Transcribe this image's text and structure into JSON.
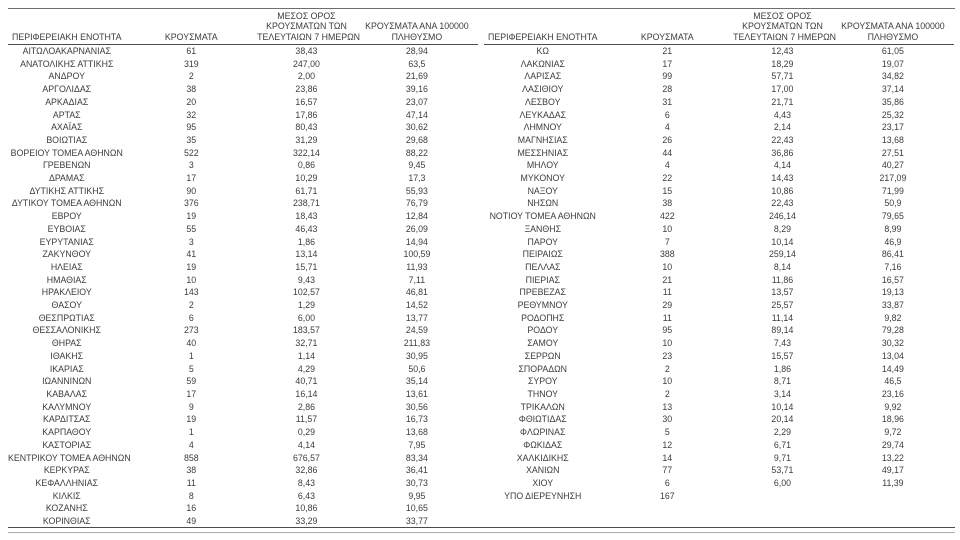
{
  "colors": {
    "background": "#ffffff",
    "text": "#3c3c3c",
    "rule_top": "#6f6f6f",
    "rule_header": "#4c4c4c",
    "rule_bottom_dark": "#4c4c4c",
    "rule_bottom_light": "#ababab"
  },
  "chart_data": {
    "type": "table",
    "columns": [
      "ΠΕΡΙΦΕΡΕΙΑΚΗ ΕΝΟΤΗΤΑ",
      "ΚΡΟΥΣΜΑΤΑ",
      "ΜΕΣΟΣ ΟΡΟΣ ΚΡΟΥΣΜΑΤΩΝ ΤΩΝ ΤΕΛΕΥΤΑΙΩΝ 7 ΗΜΕΡΩΝ",
      "ΚΡΟΥΣΜΑΤΑ ΑΝΑ 100000 ΠΛΗΘΥΣΜΟ"
    ],
    "column_header_lines": [
      [
        "ΠΕΡΙΦΕΡΕΙΑΚΗ ΕΝΟΤΗΤΑ"
      ],
      [
        "ΚΡΟΥΣΜΑΤΑ"
      ],
      [
        "ΜΕΣΟΣ ΟΡΟΣ",
        "ΚΡΟΥΣΜΑΤΩΝ ΤΩΝ",
        "ΤΕΛΕΥΤΑΙΩΝ 7 ΗΜΕΡΩΝ"
      ],
      [
        "ΚΡΟΥΣΜΑΤΑ ΑΝΑ 100000",
        "ΠΛΗΘΥΣΜΟ"
      ]
    ],
    "left_table_rows": [
      [
        "ΑΙΤΩΛΟΑΚΑΡΝΑΝΙΑΣ",
        "61",
        "38,43",
        "28,94"
      ],
      [
        "ΑΝΑΤΟΛΙΚΗΣ ΑΤΤΙΚΗΣ",
        "319",
        "247,00",
        "63,5"
      ],
      [
        "ΑΝΔΡΟΥ",
        "2",
        "2,00",
        "21,69"
      ],
      [
        "ΑΡΓΟΛΙΔΑΣ",
        "38",
        "23,86",
        "39,16"
      ],
      [
        "ΑΡΚΑΔΙΑΣ",
        "20",
        "16,57",
        "23,07"
      ],
      [
        "ΑΡΤΑΣ",
        "32",
        "17,86",
        "47,14"
      ],
      [
        "ΑΧΑΪΑΣ",
        "95",
        "80,43",
        "30,62"
      ],
      [
        "ΒΟΙΩΤΙΑΣ",
        "35",
        "31,29",
        "29,68"
      ],
      [
        "ΒΟΡΕΙΟΥ ΤΟΜΕΑ ΑΘΗΝΩΝ",
        "522",
        "322,14",
        "88,22"
      ],
      [
        "ΓΡΕΒΕΝΩΝ",
        "3",
        "0,86",
        "9,45"
      ],
      [
        "ΔΡΑΜΑΣ",
        "17",
        "10,29",
        "17,3"
      ],
      [
        "ΔΥΤΙΚΗΣ ΑΤΤΙΚΗΣ",
        "90",
        "61,71",
        "55,93"
      ],
      [
        "ΔΥΤΙΚΟΥ ΤΟΜΕΑ ΑΘΗΝΩΝ",
        "376",
        "238,71",
        "76,79"
      ],
      [
        "ΕΒΡΟΥ",
        "19",
        "18,43",
        "12,84"
      ],
      [
        "ΕΥΒΟΙΑΣ",
        "55",
        "46,43",
        "26,09"
      ],
      [
        "ΕΥΡΥΤΑΝΙΑΣ",
        "3",
        "1,86",
        "14,94"
      ],
      [
        "ΖΑΚΥΝΘΟΥ",
        "41",
        "13,14",
        "100,59"
      ],
      [
        "ΗΛΕΙΑΣ",
        "19",
        "15,71",
        "11,93"
      ],
      [
        "ΗΜΑΘΙΑΣ",
        "10",
        "9,43",
        "7,11"
      ],
      [
        "ΗΡΑΚΛΕΙΟΥ",
        "143",
        "102,57",
        "46,81"
      ],
      [
        "ΘΑΣΟΥ",
        "2",
        "1,29",
        "14,52"
      ],
      [
        "ΘΕΣΠΡΩΤΙΑΣ",
        "6",
        "6,00",
        "13,77"
      ],
      [
        "ΘΕΣΣΑΛΟΝΙΚΗΣ",
        "273",
        "183,57",
        "24,59"
      ],
      [
        "ΘΗΡΑΣ",
        "40",
        "32,71",
        "211,83"
      ],
      [
        "ΙΘΑΚΗΣ",
        "1",
        "1,14",
        "30,95"
      ],
      [
        "ΙΚΑΡΙΑΣ",
        "5",
        "4,29",
        "50,6"
      ],
      [
        "ΙΩΑΝΝΙΝΩΝ",
        "59",
        "40,71",
        "35,14"
      ],
      [
        "ΚΑΒΑΛΑΣ",
        "17",
        "16,14",
        "13,61"
      ],
      [
        "ΚΑΛΥΜΝΟΥ",
        "9",
        "2,86",
        "30,56"
      ],
      [
        "ΚΑΡΔΙΤΣΑΣ",
        "19",
        "11,57",
        "16,73"
      ],
      [
        "ΚΑΡΠΑΘΟΥ",
        "1",
        "0,29",
        "13,68"
      ],
      [
        "ΚΑΣΤΟΡΙΑΣ",
        "4",
        "4,14",
        "7,95"
      ],
      [
        "ΚΕΝΤΡΙΚΟΥ ΤΟΜΕΑ ΑΘΗΝΩΝ",
        "858",
        "676,57",
        "83,34"
      ],
      [
        "ΚΕΡΚΥΡΑΣ",
        "38",
        "32,86",
        "36,41"
      ],
      [
        "ΚΕΦΑΛΛΗΝΙΑΣ",
        "11",
        "8,43",
        "30,73"
      ],
      [
        "ΚΙΛΚΙΣ",
        "8",
        "6,43",
        "9,95"
      ],
      [
        "ΚΟΖΑΝΗΣ",
        "16",
        "10,86",
        "10,65"
      ],
      [
        "ΚΟΡΙΝΘΙΑΣ",
        "49",
        "33,29",
        "33,77"
      ]
    ],
    "right_table_rows": [
      [
        "ΚΩ",
        "21",
        "12,43",
        "61,05"
      ],
      [
        "ΛΑΚΩΝΙΑΣ",
        "17",
        "18,29",
        "19,07"
      ],
      [
        "ΛΑΡΙΣΑΣ",
        "99",
        "57,71",
        "34,82"
      ],
      [
        "ΛΑΣΙΘΙΟΥ",
        "28",
        "17,00",
        "37,14"
      ],
      [
        "ΛΕΣΒΟΥ",
        "31",
        "21,71",
        "35,86"
      ],
      [
        "ΛΕΥΚΑΔΑΣ",
        "6",
        "4,43",
        "25,32"
      ],
      [
        "ΛΗΜΝΟΥ",
        "4",
        "2,14",
        "23,17"
      ],
      [
        "ΜΑΓΝΗΣΙΑΣ",
        "26",
        "22,43",
        "13,68"
      ],
      [
        "ΜΕΣΣΗΝΙΑΣ",
        "44",
        "36,86",
        "27,51"
      ],
      [
        "ΜΗΛΟΥ",
        "4",
        "4,14",
        "40,27"
      ],
      [
        "ΜΥΚΟΝΟΥ",
        "22",
        "14,43",
        "217,09"
      ],
      [
        "ΝΑΞΟΥ",
        "15",
        "10,86",
        "71,99"
      ],
      [
        "ΝΗΣΩΝ",
        "38",
        "22,43",
        "50,9"
      ],
      [
        "ΝΟΤΙΟΥ ΤΟΜΕΑ ΑΘΗΝΩΝ",
        "422",
        "246,14",
        "79,65"
      ],
      [
        "ΞΑΝΘΗΣ",
        "10",
        "8,29",
        "8,99"
      ],
      [
        "ΠΑΡΟΥ",
        "7",
        "10,14",
        "46,9"
      ],
      [
        "ΠΕΙΡΑΙΩΣ",
        "388",
        "259,14",
        "86,41"
      ],
      [
        "ΠΕΛΛΑΣ",
        "10",
        "8,14",
        "7,16"
      ],
      [
        "ΠΙΕΡΙΑΣ",
        "21",
        "11,86",
        "16,57"
      ],
      [
        "ΠΡΕΒΕΖΑΣ",
        "11",
        "13,57",
        "19,13"
      ],
      [
        "ΡΕΘΥΜΝΟΥ",
        "29",
        "25,57",
        "33,87"
      ],
      [
        "ΡΟΔΟΠΗΣ",
        "11",
        "11,14",
        "9,82"
      ],
      [
        "ΡΟΔΟΥ",
        "95",
        "89,14",
        "79,28"
      ],
      [
        "ΣΑΜΟΥ",
        "10",
        "7,43",
        "30,32"
      ],
      [
        "ΣΕΡΡΩΝ",
        "23",
        "15,57",
        "13,04"
      ],
      [
        "ΣΠΟΡΑΔΩΝ",
        "2",
        "1,86",
        "14,49"
      ],
      [
        "ΣΥΡΟΥ",
        "10",
        "8,71",
        "46,5"
      ],
      [
        "ΤΗΝΟΥ",
        "2",
        "3,14",
        "23,16"
      ],
      [
        "ΤΡΙΚΑΛΩΝ",
        "13",
        "10,14",
        "9,92"
      ],
      [
        "ΦΘΙΩΤΙΔΑΣ",
        "30",
        "20,14",
        "18,96"
      ],
      [
        "ΦΛΩΡΙΝΑΣ",
        "5",
        "2,29",
        "9,72"
      ],
      [
        "ΦΩΚΙΔΑΣ",
        "12",
        "6,71",
        "29,74"
      ],
      [
        "ΧΑΛΚΙΔΙΚΗΣ",
        "14",
        "9,71",
        "13,22"
      ],
      [
        "ΧΑΝΙΩΝ",
        "77",
        "53,71",
        "49,17"
      ],
      [
        "ΧΙΟΥ",
        "6",
        "6,00",
        "11,39"
      ],
      [
        "ΥΠΟ ΔΙΕΡΕΥΝΗΣΗ",
        "167",
        "",
        ""
      ]
    ]
  }
}
